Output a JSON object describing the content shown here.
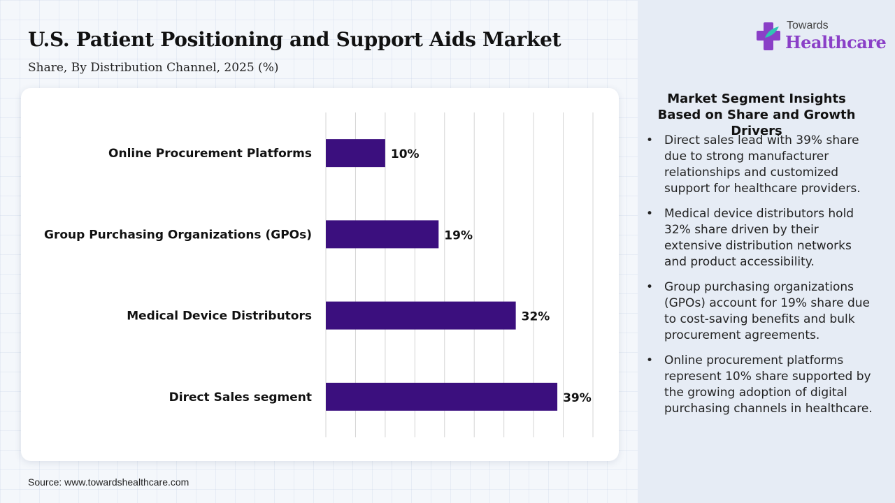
{
  "title": "U.S. Patient Positioning and Support Aids Market",
  "subtitle": "Share, By Distribution Channel, 2025 (%)",
  "source": "Source: www.towardshealthcare.com",
  "logo": {
    "top": "Towards",
    "main": "Healthcare"
  },
  "insights": {
    "title": "Market Segment Insights Based on Share and Growth Drivers",
    "bullets": [
      "Direct sales lead with 39% share due to strong manufacturer relationships and customized support for healthcare providers.",
      "Medical device distributors hold 32% share driven by their extensive distribution networks and product accessibility.",
      "Group purchasing organizations (GPOs) account for 19% share due to cost-saving benefits and bulk procurement agreements.",
      "Online procurement platforms represent 10% share supported by the growing adoption of digital purchasing channels in healthcare."
    ]
  },
  "colors": {
    "bar": "#3b0f7e",
    "accent": "#8a3fc7",
    "grid": "#d4d4d4"
  },
  "chart_data": {
    "type": "bar",
    "orientation": "horizontal",
    "title": "U.S. Patient Positioning and Support Aids Market",
    "subtitle": "Share, By Distribution Channel, 2025 (%)",
    "categories": [
      "Online Procurement Platforms",
      "Group Purchasing Organizations (GPOs)",
      "Medical Device Distributors",
      "Direct Sales segment"
    ],
    "values": [
      10,
      19,
      32,
      39
    ],
    "value_labels": [
      "10%",
      "19%",
      "32%",
      "39%"
    ],
    "unit": "%",
    "xlim": [
      0,
      45
    ],
    "grid": true,
    "legend": "none"
  }
}
